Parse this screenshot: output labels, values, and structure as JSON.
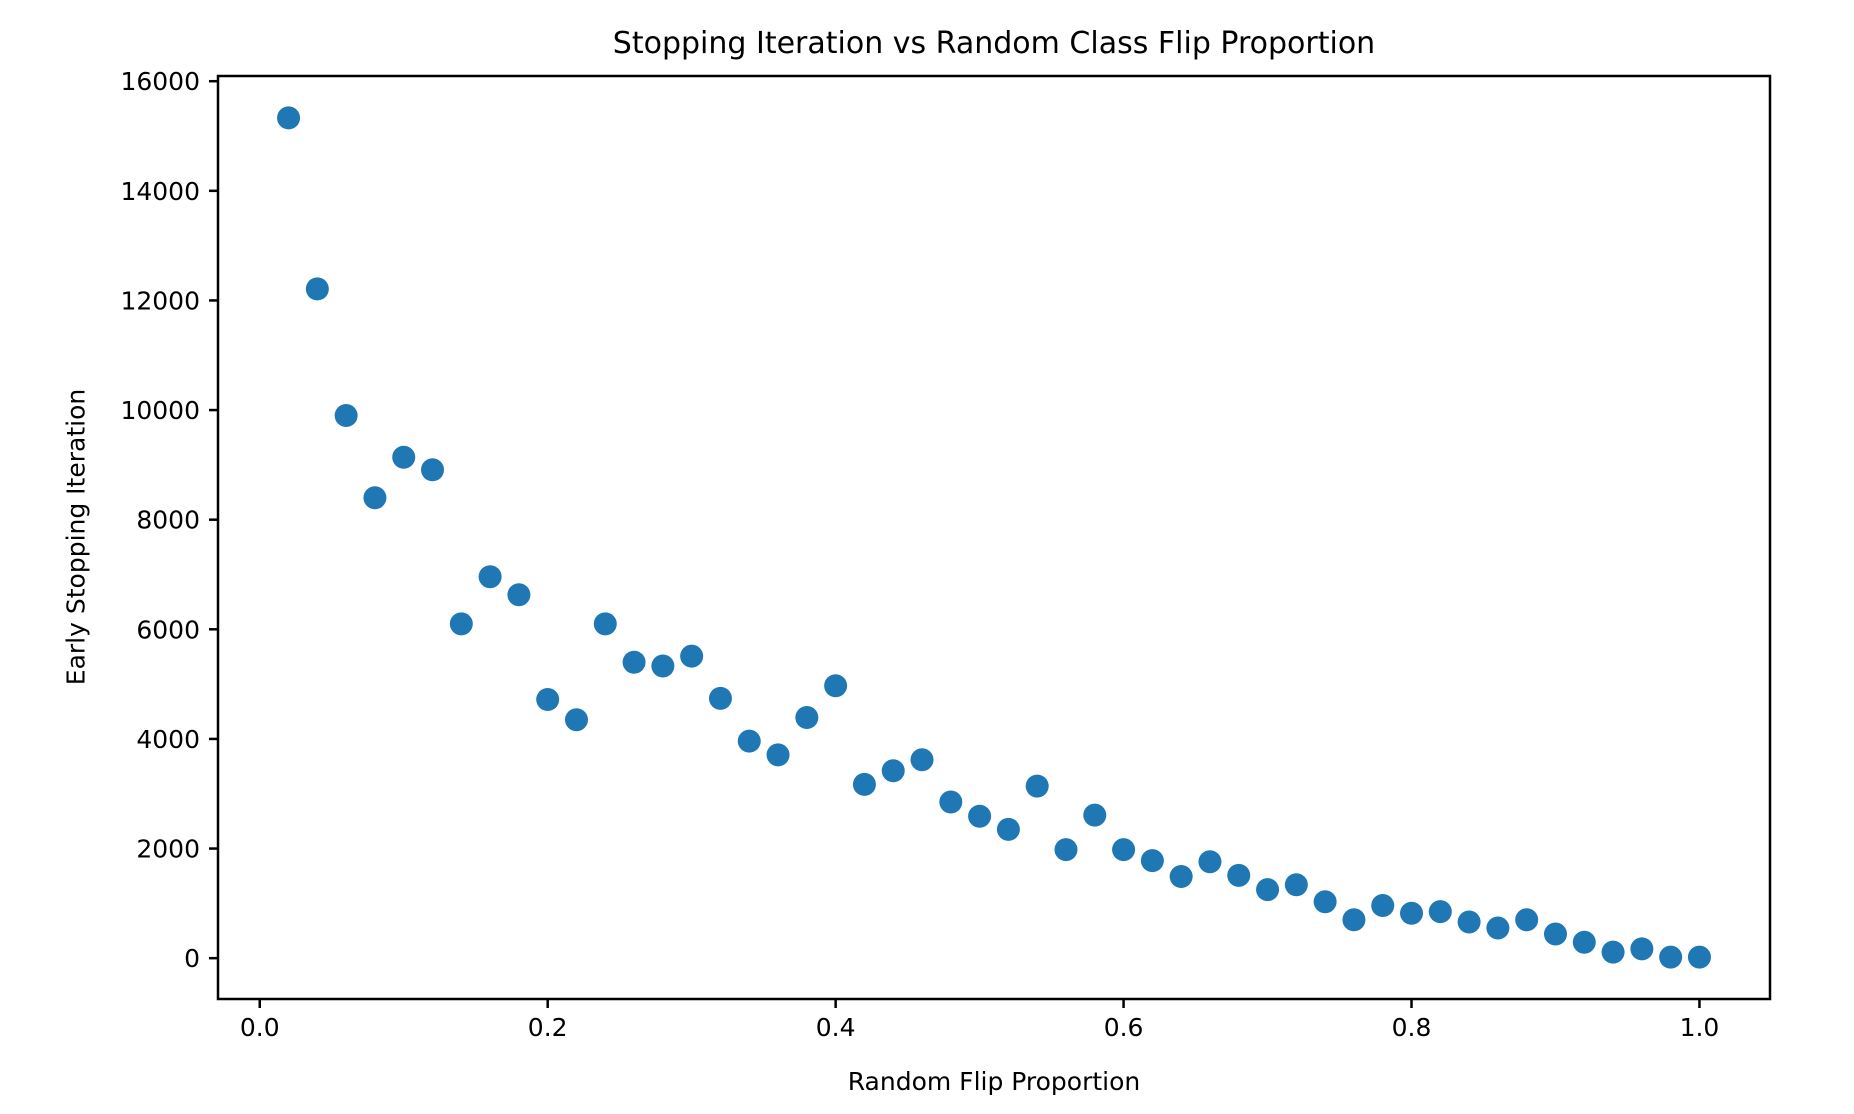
{
  "chart_data": {
    "type": "scatter",
    "title": "Stopping Iteration vs Random Class Flip Proportion",
    "xlabel": "Random Flip Proportion",
    "ylabel": "Early Stopping Iteration",
    "x": [
      0.02,
      0.04,
      0.06,
      0.08,
      0.1,
      0.12,
      0.14,
      0.16,
      0.18,
      0.2,
      0.22,
      0.24,
      0.26,
      0.28,
      0.3,
      0.32,
      0.34,
      0.36,
      0.38,
      0.4,
      0.42,
      0.44,
      0.46,
      0.48,
      0.5,
      0.52,
      0.54,
      0.56,
      0.58,
      0.6,
      0.62,
      0.64,
      0.66,
      0.68,
      0.7,
      0.72,
      0.74,
      0.76,
      0.78,
      0.8,
      0.82,
      0.84,
      0.86,
      0.88,
      0.9,
      0.92,
      0.94,
      0.96,
      0.98,
      1.0
    ],
    "y": [
      15330,
      12210,
      9900,
      8400,
      9140,
      8910,
      6100,
      6960,
      6630,
      4720,
      4350,
      6100,
      5400,
      5330,
      5510,
      4740,
      3960,
      3710,
      4390,
      4970,
      3170,
      3420,
      3620,
      2850,
      2590,
      2350,
      3140,
      1980,
      2610,
      1980,
      1780,
      1490,
      1760,
      1510,
      1250,
      1340,
      1030,
      700,
      960,
      820,
      850,
      660,
      550,
      700,
      440,
      290,
      110,
      170,
      20,
      20
    ],
    "xlim": [
      -0.029,
      1.049
    ],
    "ylim": [
      -745,
      16095
    ],
    "xticks": [
      0.0,
      0.2,
      0.4,
      0.6,
      0.8,
      1.0
    ],
    "xtick_labels": [
      "0.0",
      "0.2",
      "0.4",
      "0.6",
      "0.8",
      "1.0"
    ],
    "yticks": [
      0,
      2000,
      4000,
      6000,
      8000,
      10000,
      12000,
      14000,
      16000
    ],
    "ytick_labels": [
      "0",
      "2000",
      "4000",
      "6000",
      "8000",
      "10000",
      "12000",
      "14000",
      "16000"
    ],
    "marker_color": "#1f77b4",
    "marker_radius": 11.5,
    "axis_color": "#000000",
    "grid": false,
    "legend": null
  }
}
